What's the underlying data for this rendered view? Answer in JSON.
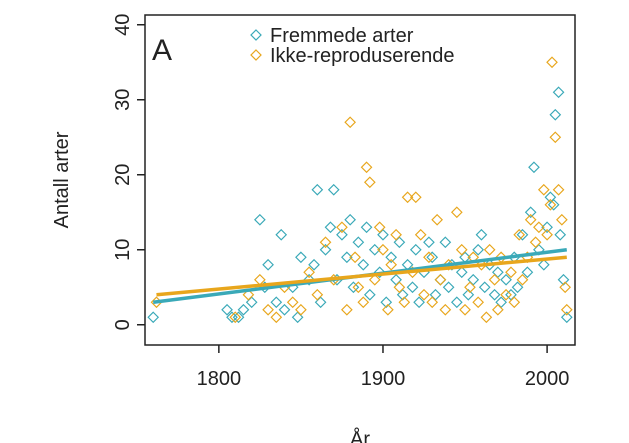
{
  "chart_data": {
    "type": "scatter",
    "annotation": "A",
    "y_label": "Antall arter",
    "x_label": "År",
    "xlim": [
      1755,
      2017
    ],
    "ylim": [
      -2.7,
      41.3
    ],
    "xticks": [
      1800,
      1900,
      2000
    ],
    "yticks": [
      0,
      10,
      20,
      30,
      40
    ],
    "series": [
      {
        "name": "Fremmede arter",
        "color": "#3aa9b8",
        "x": [
          1760,
          1805,
          1808,
          1812,
          1815,
          1820,
          1825,
          1828,
          1830,
          1835,
          1838,
          1840,
          1845,
          1848,
          1850,
          1855,
          1858,
          1860,
          1862,
          1865,
          1868,
          1870,
          1872,
          1875,
          1878,
          1880,
          1882,
          1885,
          1888,
          1890,
          1892,
          1895,
          1898,
          1900,
          1902,
          1905,
          1908,
          1910,
          1912,
          1915,
          1918,
          1920,
          1922,
          1925,
          1928,
          1930,
          1932,
          1935,
          1938,
          1940,
          1942,
          1945,
          1948,
          1950,
          1952,
          1955,
          1958,
          1960,
          1962,
          1965,
          1968,
          1970,
          1972,
          1975,
          1978,
          1980,
          1982,
          1985,
          1988,
          1990,
          1992,
          1995,
          1998,
          2000,
          2002,
          2004,
          2005,
          2007,
          2008,
          2010,
          2012
        ],
        "values": [
          1,
          2,
          1,
          1,
          2,
          3,
          14,
          5,
          8,
          3,
          12,
          2,
          5,
          1,
          9,
          6,
          8,
          18,
          3,
          10,
          13,
          18,
          6,
          12,
          9,
          14,
          5,
          11,
          8,
          13,
          4,
          10,
          7,
          12,
          3,
          9,
          6,
          11,
          4,
          8,
          5,
          10,
          3,
          7,
          11,
          9,
          4,
          6,
          11,
          5,
          8,
          3,
          7,
          9,
          4,
          6,
          10,
          12,
          5,
          8,
          4,
          7,
          3,
          6,
          4,
          9,
          5,
          12,
          7,
          15,
          21,
          10,
          8,
          13,
          17,
          16,
          28,
          31,
          12,
          6,
          1
        ],
        "trend": {
          "x": [
            1760,
            2012
          ],
          "values": [
            3,
            10
          ]
        }
      },
      {
        "name": "Ikke-reproduserende",
        "color": "#e8a61c",
        "x": [
          1762,
          1810,
          1818,
          1825,
          1830,
          1835,
          1840,
          1845,
          1850,
          1855,
          1860,
          1865,
          1870,
          1875,
          1878,
          1880,
          1883,
          1885,
          1888,
          1890,
          1892,
          1895,
          1898,
          1900,
          1903,
          1905,
          1908,
          1910,
          1913,
          1915,
          1918,
          1920,
          1923,
          1925,
          1928,
          1930,
          1933,
          1935,
          1938,
          1940,
          1945,
          1948,
          1950,
          1953,
          1955,
          1958,
          1960,
          1963,
          1965,
          1968,
          1970,
          1972,
          1975,
          1978,
          1980,
          1983,
          1985,
          1988,
          1990,
          1993,
          1995,
          1998,
          2000,
          2002,
          2003,
          2005,
          2007,
          2009,
          2011,
          2012
        ],
        "values": [
          3,
          1,
          4,
          6,
          2,
          1,
          5,
          3,
          2,
          7,
          4,
          11,
          6,
          13,
          2,
          27,
          9,
          5,
          3,
          21,
          19,
          6,
          13,
          10,
          2,
          8,
          12,
          5,
          3,
          17,
          7,
          17,
          12,
          4,
          9,
          3,
          14,
          6,
          2,
          8,
          15,
          10,
          2,
          5,
          9,
          3,
          8,
          1,
          10,
          6,
          2,
          9,
          4,
          7,
          3,
          12,
          6,
          9,
          14,
          11,
          13,
          18,
          12,
          16,
          35,
          25,
          18,
          14,
          5,
          2
        ],
        "trend": {
          "x": [
            1762,
            2012
          ],
          "values": [
            4,
            9
          ]
        }
      }
    ]
  }
}
